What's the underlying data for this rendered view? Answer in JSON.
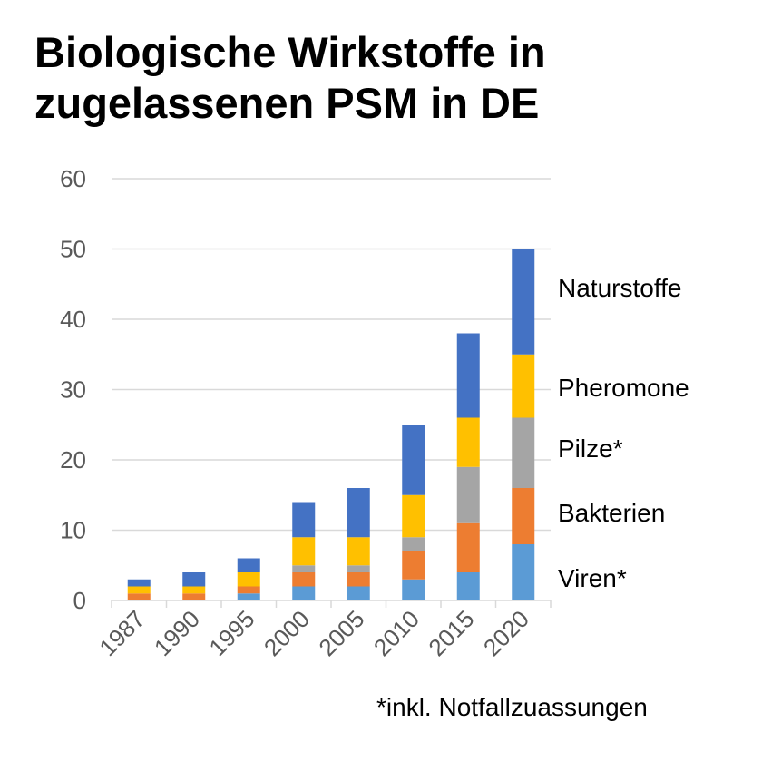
{
  "chart_data": {
    "type": "bar",
    "stacked": true,
    "title": "Biologische Wirkstoffe in zugelassenen PSM in DE",
    "xlabel": "",
    "ylabel": "",
    "ylim": [
      0,
      60
    ],
    "yticks": [
      0,
      10,
      20,
      30,
      40,
      50,
      60
    ],
    "grid": true,
    "legend_placement": "right (inline labels)",
    "categories": [
      "1987",
      "1990",
      "1995",
      "2000",
      "2005",
      "2010",
      "2015",
      "2020"
    ],
    "series": [
      {
        "name": "Viren*",
        "color": "#5B9BD5",
        "values": [
          0,
          0,
          1,
          2,
          2,
          3,
          4,
          8
        ]
      },
      {
        "name": "Bakterien",
        "color": "#ED7D31",
        "values": [
          1,
          1,
          1,
          2,
          2,
          4,
          7,
          8
        ]
      },
      {
        "name": "Pilze*",
        "color": "#A5A5A5",
        "values": [
          0,
          0,
          0,
          1,
          1,
          2,
          8,
          10
        ]
      },
      {
        "name": "Pheromone",
        "color": "#FFC000",
        "values": [
          1,
          1,
          2,
          4,
          4,
          6,
          7,
          9
        ]
      },
      {
        "name": "Naturstoffe",
        "color": "#4472C4",
        "values": [
          1,
          2,
          2,
          5,
          7,
          10,
          12,
          15
        ]
      }
    ],
    "footnote": "*inkl. Notfallzuassungen"
  }
}
